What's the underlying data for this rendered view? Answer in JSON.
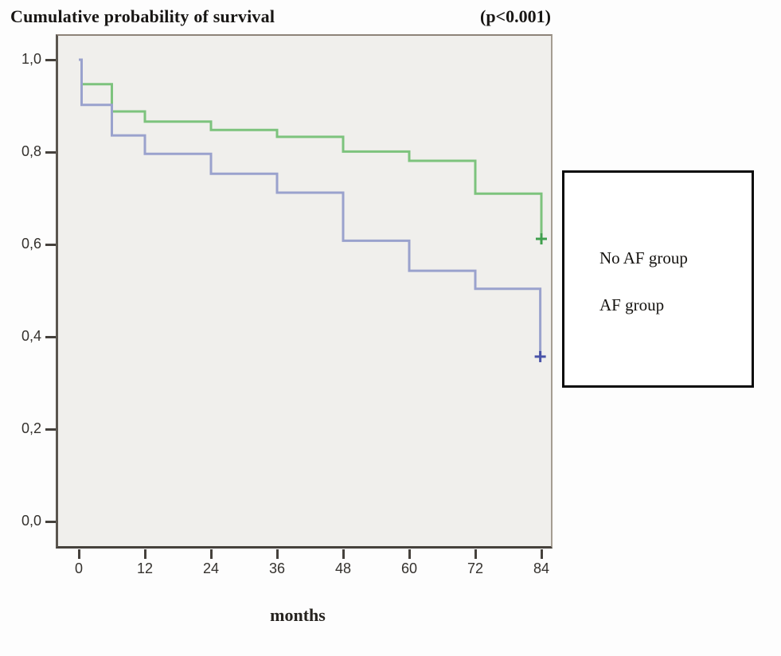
{
  "chart_data": {
    "type": "line",
    "subtype": "kaplan-meier-step-curves",
    "title": "Cumulative probability of survival",
    "annotation": "(p<0.001)",
    "xlabel": "months",
    "ylabel": "",
    "xlim": [
      0,
      84
    ],
    "ylim": [
      0.0,
      1.0
    ],
    "x_ticks": [
      0,
      12,
      24,
      36,
      48,
      60,
      72,
      84
    ],
    "y_tick_labels": [
      "1,0",
      "0,8",
      "0,6",
      "0,4",
      "0,2",
      "0,0"
    ],
    "y_tick_values": [
      1.0,
      0.8,
      0.6,
      0.4,
      0.2,
      0.0
    ],
    "grid": false,
    "legend_position": "right-outside",
    "plot_background": "#f0efec",
    "series": [
      {
        "name": "No AF group",
        "color": "#7dc37d",
        "censor_color": "#3f9f4d",
        "steps": [
          [
            0,
            1.0
          ],
          [
            0.5,
            0.947
          ],
          [
            6,
            0.888
          ],
          [
            12,
            0.866
          ],
          [
            24,
            0.848
          ],
          [
            36,
            0.833
          ],
          [
            48,
            0.801
          ],
          [
            60,
            0.781
          ],
          [
            72,
            0.71
          ]
        ],
        "final_censor": [
          84,
          0.612
        ]
      },
      {
        "name": "AF group",
        "color": "#9aa2cd",
        "censor_color": "#4953a8",
        "steps": [
          [
            0,
            1.0
          ],
          [
            0.5,
            0.902
          ],
          [
            6,
            0.836
          ],
          [
            12,
            0.796
          ],
          [
            24,
            0.753
          ],
          [
            36,
            0.712
          ],
          [
            48,
            0.608
          ],
          [
            60,
            0.543
          ],
          [
            72,
            0.504
          ]
        ],
        "final_censor": [
          83.8,
          0.357
        ]
      }
    ]
  }
}
